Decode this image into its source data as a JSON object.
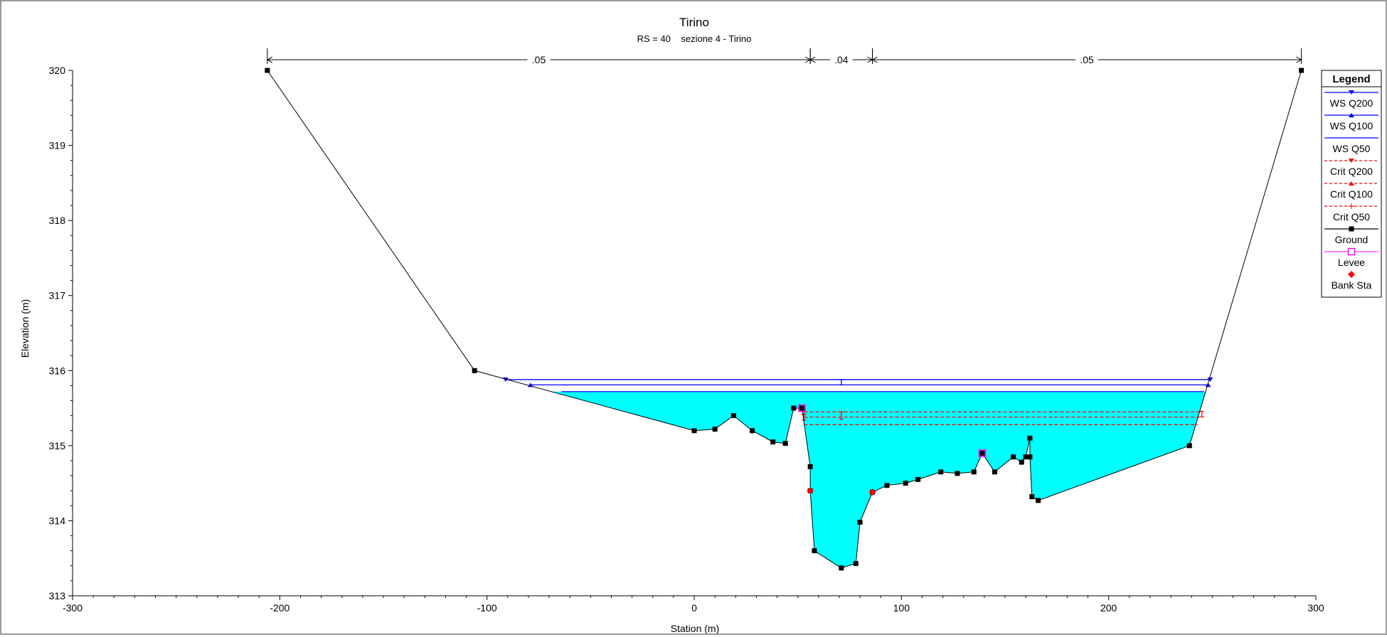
{
  "chart_data": {
    "type": "line",
    "title": "Tirino",
    "subtitle": "RS = 40    sezione 4 - Tirino",
    "xlabel": "Station (m)",
    "ylabel": "Elevation (m)",
    "xlim": [
      -300,
      300
    ],
    "ylim": [
      313,
      320
    ],
    "xticks": [
      -300,
      -200,
      -100,
      0,
      100,
      200,
      300
    ],
    "yticks": [
      313,
      314,
      315,
      316,
      317,
      318,
      319,
      320
    ],
    "grid": false,
    "legend_position": "right",
    "manning_n": [
      {
        "label": ".05",
        "from": -206,
        "to": 56
      },
      {
        "label": ".04",
        "from": 56,
        "to": 86
      },
      {
        "label": ".05",
        "from": 86,
        "to": 293
      }
    ],
    "ground": [
      [
        -206,
        320
      ],
      [
        -106,
        316
      ],
      [
        0,
        315.2
      ],
      [
        10,
        315.22
      ],
      [
        19,
        315.4
      ],
      [
        28,
        315.2
      ],
      [
        38,
        315.05
      ],
      [
        44,
        315.03
      ],
      [
        48,
        315.5
      ],
      [
        52,
        315.5
      ],
      [
        56,
        314.72
      ],
      [
        56,
        314.4
      ],
      [
        58,
        313.6
      ],
      [
        71,
        313.37
      ],
      [
        78,
        313.43
      ],
      [
        80,
        313.98
      ],
      [
        86,
        314.38
      ],
      [
        93,
        314.47
      ],
      [
        102,
        314.5
      ],
      [
        108,
        314.55
      ],
      [
        119,
        314.65
      ],
      [
        127,
        314.63
      ],
      [
        135,
        314.65
      ],
      [
        139,
        314.9
      ],
      [
        145,
        314.65
      ],
      [
        154,
        314.85
      ],
      [
        158,
        314.78
      ],
      [
        160,
        314.85
      ],
      [
        162,
        315.1
      ],
      [
        162,
        314.85
      ],
      [
        163,
        314.32
      ],
      [
        166,
        314.27
      ],
      [
        239,
        315.0
      ],
      [
        293,
        320
      ]
    ],
    "series": [
      {
        "name": "WS Q200",
        "elevation": 315.88,
        "from": -91,
        "to": 249,
        "color": "#0000ff",
        "style": "solid"
      },
      {
        "name": "WS Q100",
        "elevation": 315.81,
        "from": -79,
        "to": 248,
        "color": "#0000ff",
        "style": "solid"
      },
      {
        "name": "WS Q50",
        "elevation": 315.72,
        "from": -64,
        "to": 246,
        "color": "#0000ff",
        "style": "solid"
      },
      {
        "name": "Crit Q200",
        "elevation": 315.45,
        "from": 53,
        "to": 245,
        "color": "#ff0000",
        "style": "dashed"
      },
      {
        "name": "Crit Q100",
        "elevation": 315.38,
        "from": 53,
        "to": 244,
        "color": "#ff0000",
        "style": "dashed"
      },
      {
        "name": "Crit Q50",
        "elevation": 315.28,
        "from": 53,
        "to": 243,
        "color": "#ff0000",
        "style": "dashed"
      },
      {
        "name": "Ground",
        "color": "#000000",
        "style": "solid"
      },
      {
        "name": "Levee",
        "points": [
          [
            52,
            315.5
          ],
          [
            139,
            314.9
          ]
        ],
        "color": "#ff00ff"
      },
      {
        "name": "Bank Sta",
        "points": [
          [
            56,
            314.4
          ],
          [
            86,
            314.38
          ]
        ],
        "color": "#ff0000"
      }
    ],
    "water_fill_color": "#00ffff",
    "legend_title": "Legend"
  }
}
